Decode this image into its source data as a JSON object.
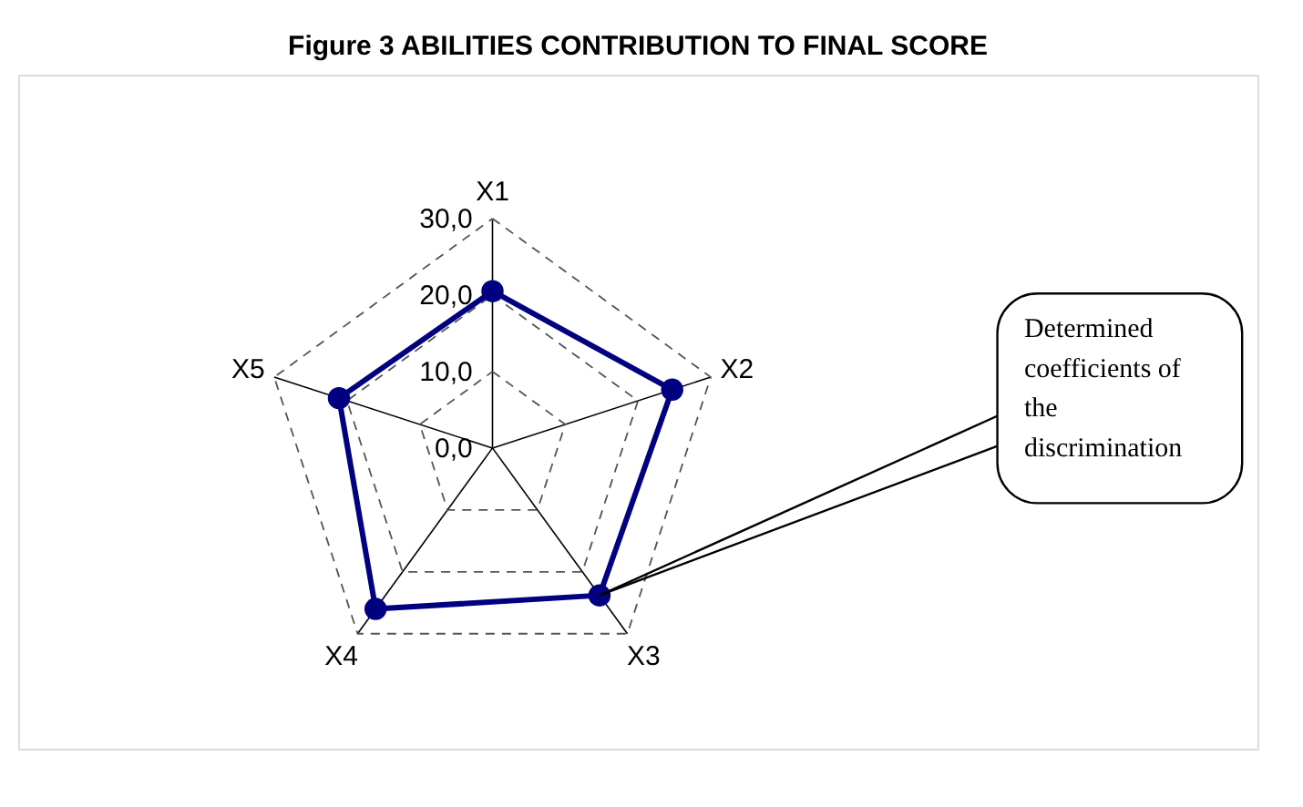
{
  "chart_data": {
    "type": "radar",
    "title": "Figure 3 ABILITIES CONTRIBUTION TO FINAL SCORE",
    "categories": [
      "X1",
      "X2",
      "X3",
      "X4",
      "X5"
    ],
    "series": [
      {
        "color": "#000080",
        "values": [
          20.5,
          24.7,
          23.8,
          26,
          21.1
        ]
      }
    ],
    "ylim": [
      0,
      30
    ],
    "yticks": [
      {
        "value": 0,
        "label": "0,0"
      },
      {
        "value": 10,
        "label": "10,0"
      },
      {
        "value": 20,
        "label": "20,0"
      },
      {
        "value": 30,
        "label": "30,0"
      }
    ],
    "grid": true,
    "marker": "circle",
    "line_style": "solid",
    "annotations": [
      {
        "text": "Determined coefficients of the discrimination",
        "x": "X3"
      }
    ]
  }
}
